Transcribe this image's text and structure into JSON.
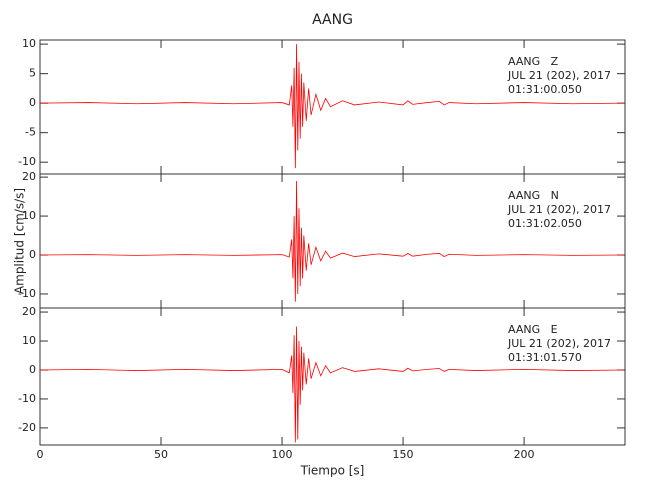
{
  "chart_data": [
    {
      "type": "line",
      "title": "AANG",
      "annotations": [
        "AANG   Z",
        "JUL 21 (202), 2017",
        "01:31:00.050"
      ],
      "color": "#ff0000",
      "x": [
        0,
        20,
        40,
        60,
        80,
        100,
        103,
        104,
        104.5,
        105,
        105.5,
        106,
        106.5,
        107,
        107.5,
        108,
        108.5,
        109,
        110,
        111,
        112,
        114,
        116,
        118,
        120,
        125,
        130,
        140,
        150,
        152,
        154,
        160,
        165,
        167,
        169,
        180,
        200,
        220,
        241
      ],
      "values": [
        0,
        0.1,
        -0.1,
        0.1,
        -0.1,
        0.1,
        -0.3,
        3,
        -4,
        6,
        -11,
        10,
        -8,
        7,
        -6,
        5,
        -4,
        3.5,
        -3,
        2.5,
        -2,
        1.5,
        -1.2,
        0.8,
        -0.6,
        0.4,
        -0.3,
        0.2,
        -0.3,
        0.4,
        -0.2,
        0.1,
        0.3,
        -0.3,
        0.1,
        -0.1,
        0.1,
        -0.1,
        0
      ],
      "xlim": [
        0,
        241.7
      ],
      "xticks": [
        0,
        50,
        100,
        150,
        200
      ],
      "ylim": [
        -12,
        10.7
      ],
      "yticks": [
        -10,
        -5,
        0,
        5,
        10
      ]
    },
    {
      "type": "line",
      "ylabel": "Amplitud [cm/s/s]",
      "annotations": [
        "AANG   N",
        "JUL 21 (202), 2017",
        "01:31:02.050"
      ],
      "color": "#ff0000",
      "x": [
        0,
        20,
        40,
        60,
        80,
        100,
        103,
        104,
        104.5,
        105,
        105.5,
        106,
        106.5,
        107,
        107.5,
        108,
        108.5,
        109,
        110,
        111,
        112,
        114,
        116,
        118,
        120,
        125,
        130,
        140,
        150,
        152,
        154,
        160,
        165,
        167,
        169,
        180,
        200,
        220,
        241
      ],
      "values": [
        0,
        0.1,
        -0.1,
        0.1,
        -0.1,
        0.1,
        -0.5,
        4,
        -6,
        10,
        -12,
        19,
        -10,
        12,
        -8,
        7,
        -6,
        5,
        -4,
        3,
        -2.5,
        2,
        -1.5,
        1,
        -0.8,
        0.5,
        -0.4,
        0.3,
        -0.3,
        0.4,
        -0.3,
        0.2,
        0.4,
        -0.4,
        0.2,
        -0.1,
        0.1,
        -0.1,
        0
      ],
      "xlim": [
        0,
        241.7
      ],
      "xticks": [
        0,
        50,
        100,
        150,
        200
      ],
      "ylim": [
        -13.6,
        20.8
      ],
      "yticks": [
        -10,
        0,
        10,
        20
      ]
    },
    {
      "type": "line",
      "xlabel": "Tiempo [s]",
      "annotations": [
        "AANG   E",
        "JUL 21 (202), 2017",
        "01:31:01.570"
      ],
      "color": "#ff0000",
      "x": [
        0,
        20,
        40,
        60,
        80,
        100,
        103,
        104,
        104.5,
        105,
        105.5,
        106,
        106.5,
        107,
        107.5,
        108,
        108.5,
        109,
        110,
        111,
        112,
        114,
        116,
        118,
        120,
        125,
        130,
        140,
        150,
        152,
        154,
        160,
        165,
        167,
        169,
        180,
        200,
        220,
        241
      ],
      "values": [
        0,
        0.2,
        -0.2,
        0.2,
        -0.2,
        0.2,
        -1,
        5,
        -8,
        12,
        -25,
        15,
        -24,
        10,
        -12,
        8,
        -7,
        6,
        -5,
        4,
        -3,
        2.5,
        -2,
        1.5,
        -1,
        0.8,
        -0.5,
        0.4,
        -0.5,
        0.6,
        -0.3,
        0.2,
        0.5,
        -0.5,
        0.2,
        -0.2,
        0.2,
        -0.2,
        0
      ],
      "xlim": [
        0,
        241.7
      ],
      "xticks": [
        0,
        50,
        100,
        150,
        200
      ],
      "ylim": [
        -25.9,
        21.4
      ],
      "yticks": [
        -20,
        -10,
        0,
        10,
        20
      ]
    }
  ]
}
